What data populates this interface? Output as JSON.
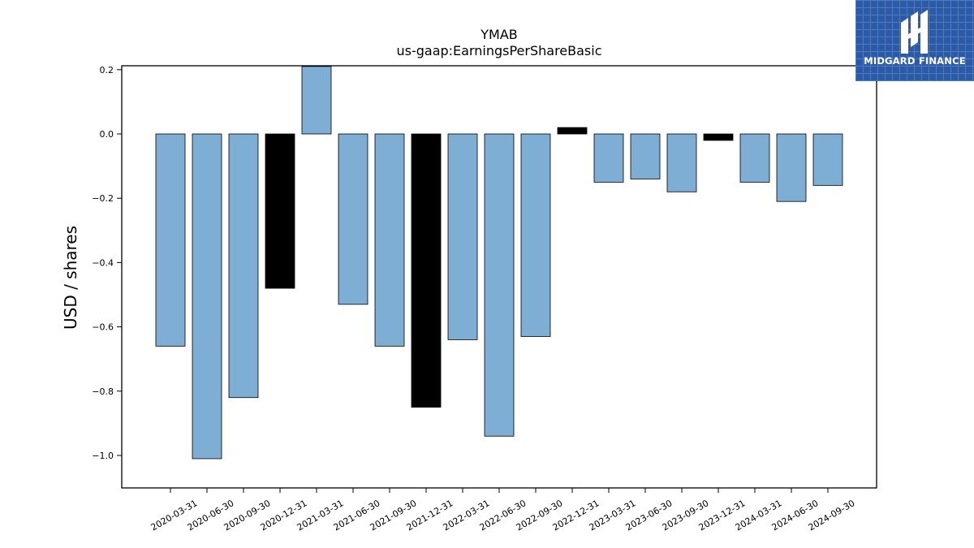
{
  "logo": {
    "text": "MIDGARD FINANCE",
    "icon": "midgard-logo-icon",
    "background": "#2b5aa8"
  },
  "chart_data": {
    "type": "bar",
    "title": "YMAB",
    "subtitle": "us-gaap:EarningsPerShareBasic",
    "xlabel": "",
    "ylabel": "USD / shares",
    "ylim": [
      -1.1,
      0.21
    ],
    "yticks": [
      0.2,
      0.0,
      -0.2,
      -0.4,
      -0.6,
      -0.8,
      -1.0
    ],
    "ytick_labels": [
      "0.2",
      "0.0",
      "−0.2",
      "−0.4",
      "−0.6",
      "−0.8",
      "−1.0"
    ],
    "grid": false,
    "categories": [
      "2020-03-31",
      "2020-06-30",
      "2020-09-30",
      "2020-12-31",
      "2021-03-31",
      "2021-06-30",
      "2021-09-30",
      "2021-12-31",
      "2022-03-31",
      "2022-06-30",
      "2022-09-30",
      "2022-12-31",
      "2023-03-31",
      "2023-06-30",
      "2023-09-30",
      "2023-12-31",
      "2024-03-31",
      "2024-06-30",
      "2024-09-30"
    ],
    "values": [
      -0.66,
      -1.01,
      -0.82,
      -0.48,
      0.21,
      -0.53,
      -0.66,
      -0.85,
      -0.64,
      -0.94,
      -0.63,
      0.02,
      -0.15,
      -0.14,
      -0.18,
      -0.02,
      -0.15,
      -0.21,
      -0.16
    ],
    "highlight": [
      false,
      false,
      false,
      true,
      false,
      false,
      false,
      true,
      false,
      false,
      false,
      true,
      false,
      false,
      false,
      true,
      false,
      false,
      false
    ],
    "colors": {
      "bar": "#7eaed3",
      "highlight": "#000000",
      "edge": "#000000"
    }
  }
}
